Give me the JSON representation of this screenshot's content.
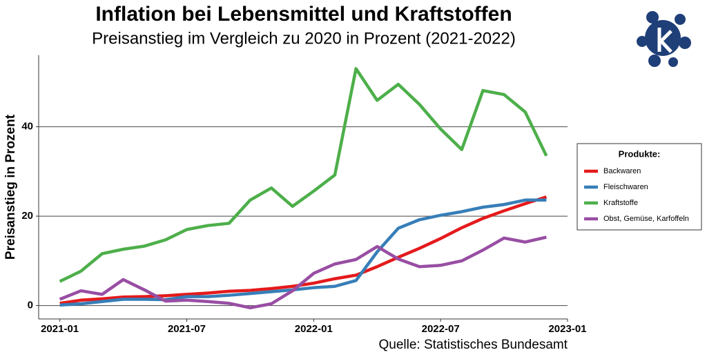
{
  "chart_data": {
    "type": "line",
    "title": "Inflation bei Lebensmittel und Kraftstoffen",
    "subtitle": "Preisanstieg im Vergleich zu 2020 in Prozent (2021-2022)",
    "y_label": "Preisanstieg in Prozent",
    "source": "Quelle: Statistisches Bundesamt",
    "legend_title": "Produkte:",
    "legend": "right",
    "grid": true,
    "x": [
      "2021-01",
      "2021-02",
      "2021-03",
      "2021-04",
      "2021-05",
      "2021-06",
      "2021-07",
      "2021-08",
      "2021-09",
      "2021-10",
      "2021-11",
      "2021-12",
      "2022-01",
      "2022-02",
      "2022-03",
      "2022-04",
      "2022-05",
      "2022-06",
      "2022-07",
      "2022-08",
      "2022-09",
      "2022-10",
      "2022-11",
      "2022-12"
    ],
    "xlim": [
      "2020-12",
      "2023-01"
    ],
    "xticks": [
      "2021-01",
      "2021-07",
      "2022-01",
      "2022-07",
      "2023-01"
    ],
    "ylim": [
      -3,
      56
    ],
    "yticks": [
      0,
      20,
      40
    ],
    "series": [
      {
        "name": "Backwaren",
        "color": "#e41a1c",
        "values": [
          0.5,
          1.2,
          1.5,
          1.9,
          2,
          2.2,
          2.5,
          2.8,
          3.2,
          3.4,
          3.8,
          4.3,
          5,
          6,
          6.8,
          8.7,
          10.8,
          12.8,
          15,
          17.4,
          19.5,
          21.2,
          22.8,
          24.3
        ]
      },
      {
        "name": "Fleischwaren",
        "color": "#377eb8",
        "values": [
          0.1,
          0.4,
          0.9,
          1.4,
          1.4,
          1.3,
          2,
          2,
          2.3,
          2.7,
          3.1,
          3.5,
          4,
          4.3,
          5.6,
          12,
          17.3,
          19.2,
          20.2,
          21,
          22,
          22.6,
          23.6,
          23.6
        ]
      },
      {
        "name": "Kraftstoffe",
        "color": "#4daf4a",
        "values": [
          5.4,
          7.7,
          11.6,
          12.6,
          13.3,
          14.7,
          17,
          17.9,
          18.4,
          23.6,
          26.3,
          22.2,
          25.6,
          29.2,
          53,
          45.9,
          49.5,
          45,
          39.5,
          34.9,
          48.1,
          47.2,
          43.3,
          33.5
        ]
      },
      {
        "name": "Obst, Gemüse, Karfoffeln",
        "color": "#984ea3",
        "values": [
          1.4,
          3.3,
          2.5,
          5.8,
          3.5,
          1,
          1.2,
          0.9,
          0.5,
          -0.5,
          0.4,
          3.3,
          7.2,
          9.3,
          10.3,
          13.2,
          10.4,
          8.7,
          9,
          10,
          12.4,
          15.1,
          14.2,
          15.3
        ]
      }
    ]
  }
}
